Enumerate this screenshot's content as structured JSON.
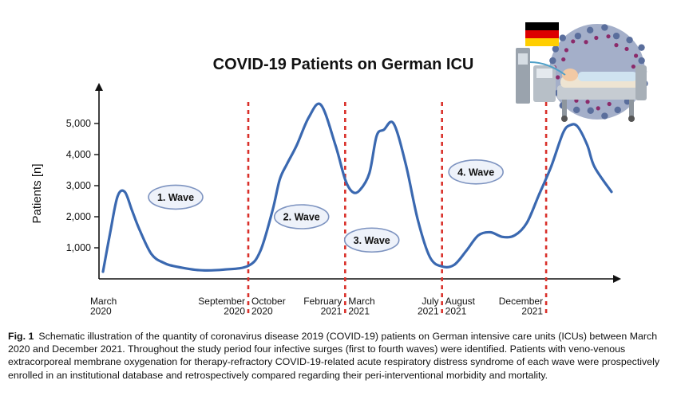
{
  "chart_data": {
    "type": "line",
    "title": "COVID-19 Patients on German ICU",
    "ylabel": "Patients [n]",
    "xlabel": "",
    "ylim": [
      0,
      6000
    ],
    "yticks": [
      1000,
      2000,
      3000,
      4000,
      5000
    ],
    "ytick_labels": [
      "1,000",
      "2,000",
      "3,000",
      "4,000",
      "5,000"
    ],
    "grid": false,
    "line_color": "#3a68b0",
    "divider_color": "#d9302a",
    "x": [
      0,
      0.3,
      0.6,
      0.9,
      1.2,
      1.5,
      2,
      2.5,
      3,
      4,
      5,
      6,
      6.5,
      7,
      7.3,
      7.6,
      8,
      8.5,
      9,
      9.6,
      10,
      10.3,
      10.6,
      11,
      11.3,
      11.6,
      12,
      12.5,
      13,
      13.5,
      14,
      14.5,
      15,
      15.5,
      16,
      16.5,
      17,
      17.5,
      18,
      18.5,
      19,
      19.3,
      19.6,
      20,
      20.3,
      21
    ],
    "values": [
      230,
      1500,
      2650,
      2800,
      2200,
      1600,
      800,
      520,
      400,
      280,
      300,
      420,
      900,
      2200,
      3200,
      3700,
      4300,
      5200,
      5600,
      4300,
      3200,
      2800,
      2850,
      3400,
      4600,
      4800,
      5000,
      3700,
      1900,
      700,
      400,
      450,
      900,
      1400,
      1500,
      1350,
      1400,
      1800,
      2700,
      3600,
      4700,
      4950,
      4900,
      4300,
      3600,
      2800
    ],
    "x_labels": [
      {
        "x": 0,
        "text": [
          "March",
          "2020"
        ],
        "align": "left"
      },
      {
        "x": 6,
        "text": [
          "September",
          "2020"
        ],
        "align": "right"
      },
      {
        "x": 6,
        "text": [
          "October",
          "2020"
        ],
        "align": "left"
      },
      {
        "x": 10,
        "text": [
          "February",
          "2021"
        ],
        "align": "right"
      },
      {
        "x": 10,
        "text": [
          "March",
          "2021"
        ],
        "align": "left"
      },
      {
        "x": 14,
        "text": [
          "July",
          "2021"
        ],
        "align": "right"
      },
      {
        "x": 14,
        "text": [
          "August",
          "2021"
        ],
        "align": "left"
      },
      {
        "x": 18.3,
        "text": [
          "December",
          "2021"
        ],
        "align": "right"
      }
    ],
    "dividers": [
      6,
      10,
      14,
      18.3
    ],
    "waves": [
      {
        "label": "1. Wave",
        "x": 3,
        "y": 2630
      },
      {
        "label": "2. Wave",
        "x": 8.2,
        "y": 2000
      },
      {
        "label": "3. Wave",
        "x": 11.1,
        "y": 1250
      },
      {
        "label": "4. Wave",
        "x": 15.4,
        "y": 3440
      }
    ]
  },
  "caption": {
    "label": "Fig. 1",
    "text": "Schematic illustration of the quantity of coronavirus disease 2019 (COVID-19) patients on German intensive care units (ICUs) between March 2020 and December 2021. Throughout the study period four infective surges (first to fourth waves) were identified. Patients with veno-venous extracorporeal membrane oxygenation for therapy-refractory COVID-19-related acute respiratory distress syndrome of each wave were prospectively enrolled in an institutional database and retrospectively compared regarding their peri-interventional morbidity and mortality."
  },
  "illustration": {
    "flag_colors": [
      "#000000",
      "#dd0000",
      "#ffce00"
    ],
    "virus_color": "#5a6e9c",
    "spike_color": "#8b2a6a",
    "icon_names": [
      "germany-flag-icon",
      "coronavirus-icon",
      "icu-bed-patient-icon"
    ]
  }
}
